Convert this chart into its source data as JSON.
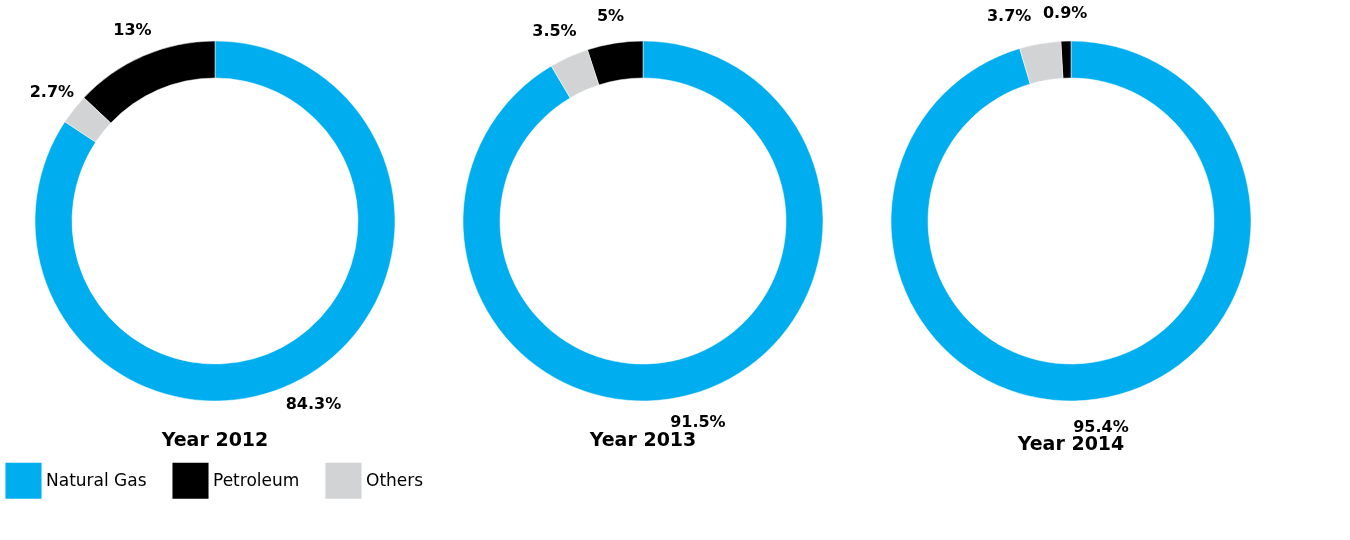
{
  "chart_data": {
    "type": "donut",
    "categories": [
      "Natural Gas",
      "Petroleum",
      "Others"
    ],
    "colors": [
      "#00aeef",
      "#000000",
      "#d1d3d4"
    ],
    "legend": "bottom left",
    "series": [
      {
        "name": "Year 2012",
        "values": [
          84.3,
          13,
          2.7
        ],
        "value_labels": [
          "84.3%",
          "13%",
          "2.7%"
        ]
      },
      {
        "name": "Year 2013",
        "values": [
          91.5,
          5,
          3.5
        ],
        "value_labels": [
          "91.5%",
          "5%",
          "3.5%"
        ]
      },
      {
        "name": "Year 2014",
        "values": [
          95.4,
          0.9,
          3.7
        ],
        "value_labels": [
          "95.4%",
          "0.9%",
          "3.7%"
        ]
      }
    ]
  }
}
